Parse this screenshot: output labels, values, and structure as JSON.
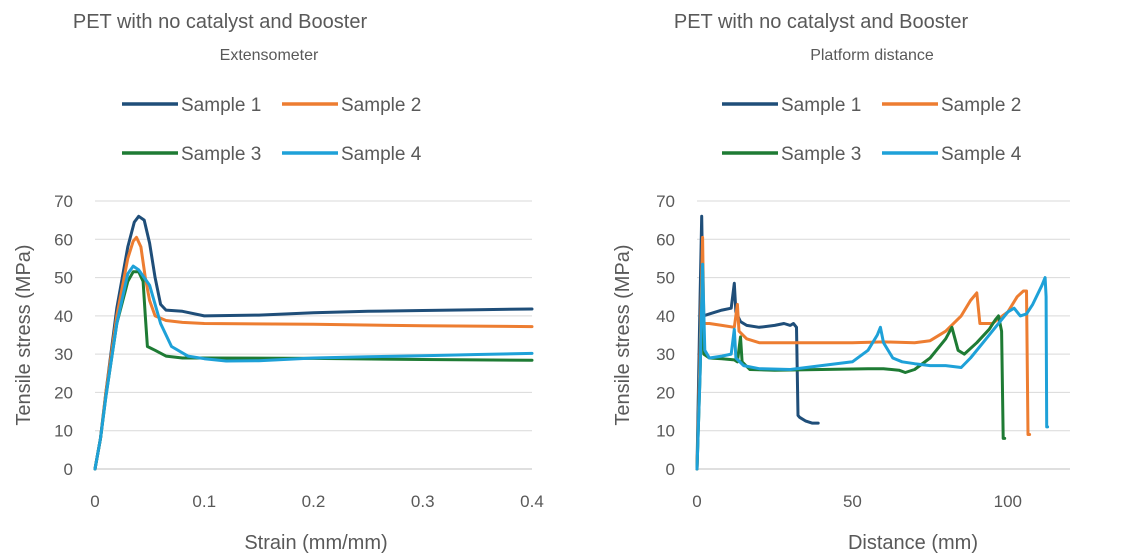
{
  "chart_data": [
    {
      "type": "line",
      "title": "PET with no catalyst and Booster",
      "subtitle": "Extensometer",
      "xlabel": "Strain (mm/mm)",
      "ylabel": "Tensile stress (MPa)",
      "xlim": [
        0,
        0.4
      ],
      "ylim": [
        0,
        70
      ],
      "x_ticks": [
        "0",
        "0.1",
        "0.2",
        "0.3",
        "0.4"
      ],
      "y_ticks": [
        "0",
        "10",
        "20",
        "30",
        "40",
        "50",
        "60",
        "70"
      ],
      "grid": true,
      "legend_position": "top",
      "series": [
        {
          "name": "Sample 1",
          "color": "#1f4e79",
          "points": [
            [
              0,
              0
            ],
            [
              0.005,
              8
            ],
            [
              0.01,
              20
            ],
            [
              0.02,
              42
            ],
            [
              0.03,
              58
            ],
            [
              0.036,
              64.5
            ],
            [
              0.04,
              66
            ],
            [
              0.045,
              65
            ],
            [
              0.05,
              59
            ],
            [
              0.055,
              50
            ],
            [
              0.06,
              43
            ],
            [
              0.065,
              41.5
            ],
            [
              0.08,
              41.2
            ],
            [
              0.1,
              40
            ],
            [
              0.15,
              40.2
            ],
            [
              0.2,
              40.8
            ],
            [
              0.25,
              41.2
            ],
            [
              0.3,
              41.4
            ],
            [
              0.35,
              41.6
            ],
            [
              0.4,
              41.8
            ]
          ]
        },
        {
          "name": "Sample 2",
          "color": "#ed7d31",
          "points": [
            [
              0,
              0
            ],
            [
              0.005,
              8
            ],
            [
              0.01,
              20
            ],
            [
              0.02,
              40
            ],
            [
              0.03,
              55
            ],
            [
              0.035,
              59.5
            ],
            [
              0.038,
              60.5
            ],
            [
              0.042,
              58
            ],
            [
              0.046,
              50
            ],
            [
              0.05,
              44
            ],
            [
              0.055,
              40
            ],
            [
              0.065,
              38.8
            ],
            [
              0.08,
              38.3
            ],
            [
              0.1,
              38
            ],
            [
              0.2,
              37.8
            ],
            [
              0.3,
              37.4
            ],
            [
              0.4,
              37.2
            ]
          ]
        },
        {
          "name": "Sample 3",
          "color": "#1e7b34",
          "points": [
            [
              0,
              0
            ],
            [
              0.005,
              8
            ],
            [
              0.01,
              19
            ],
            [
              0.02,
              38
            ],
            [
              0.03,
              49
            ],
            [
              0.035,
              51.5
            ],
            [
              0.04,
              51.5
            ],
            [
              0.044,
              49
            ],
            [
              0.046,
              40
            ],
            [
              0.048,
              32
            ],
            [
              0.055,
              31
            ],
            [
              0.065,
              29.5
            ],
            [
              0.08,
              29
            ],
            [
              0.1,
              29
            ],
            [
              0.2,
              28.9
            ],
            [
              0.3,
              28.6
            ],
            [
              0.4,
              28.4
            ]
          ]
        },
        {
          "name": "Sample 4",
          "color": "#1ea1d8",
          "points": [
            [
              0,
              0
            ],
            [
              0.005,
              8
            ],
            [
              0.01,
              19
            ],
            [
              0.02,
              38
            ],
            [
              0.03,
              51
            ],
            [
              0.035,
              53
            ],
            [
              0.04,
              52
            ],
            [
              0.05,
              48
            ],
            [
              0.06,
              38
            ],
            [
              0.07,
              32
            ],
            [
              0.085,
              29.5
            ],
            [
              0.1,
              28.8
            ],
            [
              0.12,
              28.2
            ],
            [
              0.15,
              28.3
            ],
            [
              0.2,
              29
            ],
            [
              0.25,
              29.3
            ],
            [
              0.3,
              29.6
            ],
            [
              0.35,
              29.9
            ],
            [
              0.4,
              30.2
            ]
          ]
        }
      ]
    },
    {
      "type": "line",
      "title": "PET with no catalyst and Booster",
      "subtitle": "Platform distance",
      "xlabel": "Distance (mm)",
      "ylabel": "Tensile stress (MPa)",
      "xlim": [
        0,
        120
      ],
      "ylim": [
        0,
        70
      ],
      "x_ticks": [
        "0",
        "50",
        "100"
      ],
      "y_ticks": [
        "0",
        "10",
        "20",
        "30",
        "40",
        "50",
        "60",
        "70"
      ],
      "grid": true,
      "legend_position": "top",
      "series": [
        {
          "name": "Sample 1",
          "color": "#1f4e79",
          "points": [
            [
              0,
              0
            ],
            [
              1,
              45
            ],
            [
              1.5,
              66
            ],
            [
              2,
              40
            ],
            [
              4,
              40.5
            ],
            [
              8,
              41.5
            ],
            [
              11,
              42
            ],
            [
              12,
              48.5
            ],
            [
              12.5,
              41
            ],
            [
              14,
              38.5
            ],
            [
              16,
              37.5
            ],
            [
              20,
              37
            ],
            [
              25,
              37.5
            ],
            [
              28,
              38
            ],
            [
              30,
              37.5
            ],
            [
              31,
              38
            ],
            [
              32,
              37
            ],
            [
              32.5,
              14
            ],
            [
              33,
              13.5
            ],
            [
              35,
              12.5
            ],
            [
              37,
              12
            ],
            [
              39,
              12
            ]
          ]
        },
        {
          "name": "Sample 2",
          "color": "#ed7d31",
          "points": [
            [
              0,
              0
            ],
            [
              1,
              30
            ],
            [
              1.8,
              60.5
            ],
            [
              2.2,
              38
            ],
            [
              4,
              38
            ],
            [
              8,
              37.5
            ],
            [
              12,
              37
            ],
            [
              13,
              43
            ],
            [
              13.5,
              36
            ],
            [
              16,
              34
            ],
            [
              20,
              33
            ],
            [
              30,
              33
            ],
            [
              40,
              33
            ],
            [
              50,
              33
            ],
            [
              60,
              33.2
            ],
            [
              70,
              33
            ],
            [
              75,
              33.5
            ],
            [
              80,
              36
            ],
            [
              85,
              40
            ],
            [
              88,
              44
            ],
            [
              90,
              46
            ],
            [
              91,
              38
            ],
            [
              95,
              38
            ],
            [
              100,
              41
            ],
            [
              103,
              45
            ],
            [
              105,
              46.5
            ],
            [
              106,
              46.5
            ],
            [
              106.5,
              9
            ],
            [
              107,
              9
            ]
          ]
        },
        {
          "name": "Sample 3",
          "color": "#1e7b34",
          "points": [
            [
              0,
              0
            ],
            [
              1,
              25
            ],
            [
              1.8,
              51.5
            ],
            [
              2.2,
              30
            ],
            [
              4,
              29
            ],
            [
              8,
              28.8
            ],
            [
              12,
              28.5
            ],
            [
              13,
              28
            ],
            [
              14,
              34.5
            ],
            [
              14.5,
              28
            ],
            [
              17,
              26
            ],
            [
              25,
              25.8
            ],
            [
              40,
              26
            ],
            [
              55,
              26.2
            ],
            [
              60,
              26.2
            ],
            [
              65,
              25.8
            ],
            [
              67,
              25.2
            ],
            [
              70,
              26
            ],
            [
              75,
              29
            ],
            [
              80,
              34
            ],
            [
              82,
              37
            ],
            [
              84,
              31
            ],
            [
              86,
              30
            ],
            [
              90,
              33
            ],
            [
              94,
              36.5
            ],
            [
              96,
              39
            ],
            [
              97,
              40
            ],
            [
              98,
              36
            ],
            [
              98.5,
              8
            ],
            [
              99,
              8
            ]
          ]
        },
        {
          "name": "Sample 4",
          "color": "#1ea1d8",
          "points": [
            [
              0,
              0
            ],
            [
              1,
              25
            ],
            [
              1.8,
              53.5
            ],
            [
              2.5,
              31
            ],
            [
              4,
              29
            ],
            [
              8,
              29.5
            ],
            [
              11,
              30
            ],
            [
              12,
              36.5
            ],
            [
              12.5,
              29
            ],
            [
              15,
              27
            ],
            [
              20,
              26.2
            ],
            [
              30,
              26
            ],
            [
              40,
              27
            ],
            [
              50,
              28
            ],
            [
              55,
              31
            ],
            [
              58,
              35
            ],
            [
              59,
              37
            ],
            [
              60,
              33
            ],
            [
              63,
              29
            ],
            [
              66,
              28
            ],
            [
              70,
              27.5
            ],
            [
              75,
              27
            ],
            [
              80,
              27
            ],
            [
              85,
              26.5
            ],
            [
              88,
              29
            ],
            [
              92,
              33
            ],
            [
              96,
              37
            ],
            [
              100,
              41
            ],
            [
              102,
              42
            ],
            [
              104,
              40
            ],
            [
              106,
              40.5
            ],
            [
              108,
              43
            ],
            [
              111,
              48
            ],
            [
              112,
              50
            ],
            [
              112.3,
              45
            ],
            [
              112.5,
              11
            ],
            [
              112.8,
              11
            ]
          ]
        }
      ]
    }
  ]
}
